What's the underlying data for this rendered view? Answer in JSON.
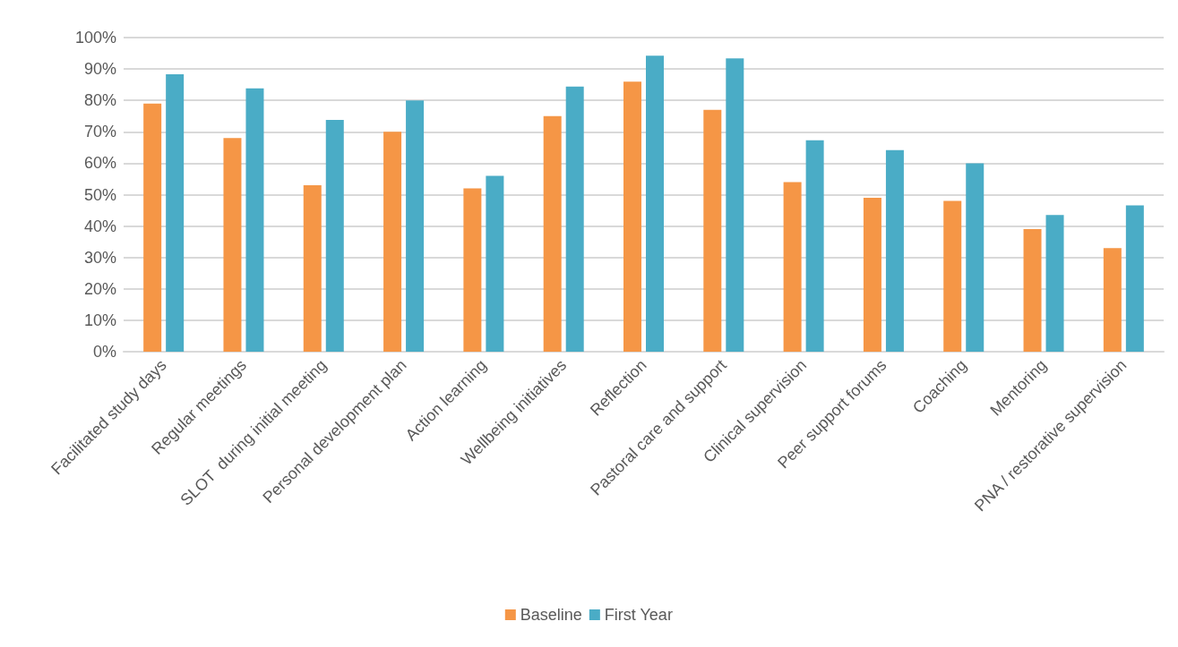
{
  "chart_data": {
    "type": "bar",
    "categories": [
      "Facilitated study days",
      "Regular meetings",
      "SLOT  during initial meeting",
      "Personal development plan",
      "Action learning",
      "Wellbeing initiatives",
      "Reflection",
      "Pastoral care and support",
      "Clinical supervision",
      "Peer support forums",
      "Coaching",
      "Mentoring",
      "PNA / restorative supervision"
    ],
    "series": [
      {
        "name": "Baseline",
        "color": "#f59646",
        "values": [
          79,
          68,
          53,
          70,
          52,
          75,
          86,
          77,
          54,
          49,
          48,
          39,
          33
        ]
      },
      {
        "name": "First Year",
        "color": "#4aacc6",
        "values": [
          88.3,
          83.8,
          73.8,
          80,
          56,
          84.4,
          94.2,
          93.4,
          67.3,
          64.2,
          60,
          43.5,
          46.6
        ]
      }
    ],
    "ylim": [
      0,
      100
    ],
    "yticks": [
      {
        "value": 0,
        "label": "0%"
      },
      {
        "value": 10,
        "label": "10%"
      },
      {
        "value": 20,
        "label": "20%"
      },
      {
        "value": 30,
        "label": "30%"
      },
      {
        "value": 40,
        "label": "40%"
      },
      {
        "value": 50,
        "label": "50%"
      },
      {
        "value": 60,
        "label": "60%"
      },
      {
        "value": 70,
        "label": "70%"
      },
      {
        "value": 80,
        "label": "80%"
      },
      {
        "value": 90,
        "label": "90%"
      },
      {
        "value": 100,
        "label": "100%"
      }
    ],
    "grid": "y",
    "legend": "bottom"
  }
}
